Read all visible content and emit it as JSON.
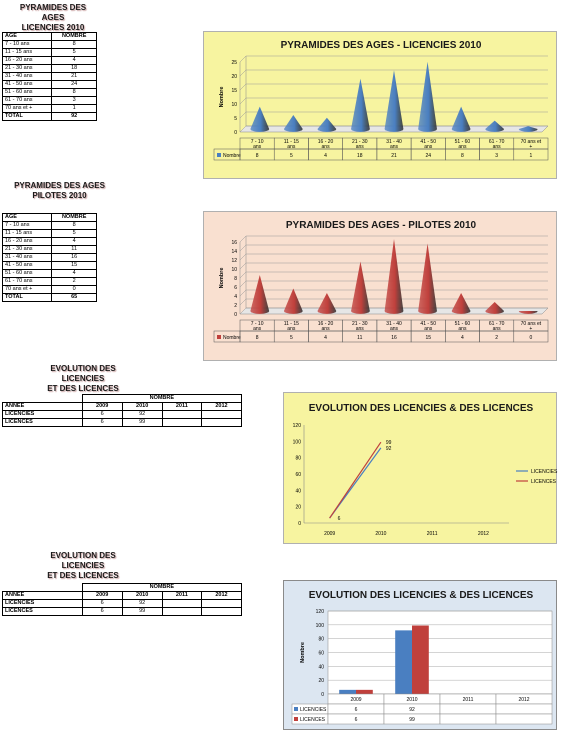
{
  "sections": [
    {
      "title_line1": "PYRAMIDES DES AGES",
      "title_line2": "LICENCIES 2010",
      "table": {
        "headers": [
          "AGE",
          "NOMBRE"
        ],
        "rows": [
          [
            "7 - 10 ans",
            "8"
          ],
          [
            "11 - 15 ans",
            "5"
          ],
          [
            "16 - 20 ans",
            "4"
          ],
          [
            "21 - 30 ans",
            "18"
          ],
          [
            "31 - 40 ans",
            "21"
          ],
          [
            "41 - 50 ans",
            "24"
          ],
          [
            "51 - 60 ans",
            "8"
          ],
          [
            "61 - 70 ans",
            "3"
          ],
          [
            "70 ans et +",
            "1"
          ]
        ],
        "total": [
          "TOTAL",
          "92"
        ]
      }
    },
    {
      "title_line1": "PYRAMIDES DES AGES",
      "title_line2": "PILOTES 2010",
      "table": {
        "headers": [
          "AGE",
          "NOMBRE"
        ],
        "rows": [
          [
            "7 - 10 ans",
            "8"
          ],
          [
            "11 - 15 ans",
            "5"
          ],
          [
            "16 - 20 ans",
            "4"
          ],
          [
            "21 - 30 ans",
            "11"
          ],
          [
            "31 - 40 ans",
            "16"
          ],
          [
            "41 - 50 ans",
            "15"
          ],
          [
            "51 - 60 ans",
            "4"
          ],
          [
            "61 - 70 ans",
            "2"
          ],
          [
            "70 ans et +",
            "0"
          ]
        ],
        "total": [
          "TOTAL",
          "65"
        ]
      }
    },
    {
      "title_line1": "EVOLUTION DES LICENCIES",
      "title_line2": "ET DES LICENCES",
      "table": {
        "group_header": "NOMBRE",
        "headers": [
          "ANNEE",
          "2009",
          "2010",
          "2011",
          "2012"
        ],
        "rows": [
          [
            "LICENCIES",
            "6",
            "92",
            "",
            ""
          ],
          [
            "LICENCES",
            "6",
            "99",
            "",
            ""
          ]
        ]
      }
    },
    {
      "title_line1": "EVOLUTION DES LICENCIES",
      "title_line2": "ET DES LICENCES",
      "table": {
        "group_header": "NOMBRE",
        "headers": [
          "ANNEE",
          "2009",
          "2010",
          "2011",
          "2012"
        ],
        "rows": [
          [
            "LICENCIES",
            "6",
            "92",
            "",
            ""
          ],
          [
            "LICENCES",
            "6",
            "99",
            "",
            ""
          ]
        ]
      }
    }
  ],
  "colors": {
    "blue": "#4a7fc1",
    "red": "#c0403c",
    "yellow_bg": "#f7f4a0",
    "pink_bg": "#f9e0d0",
    "lightblue_bg": "#dce6f1"
  },
  "chart_data": [
    {
      "type": "bar",
      "style": "cone-3d",
      "title": "PYRAMIDES DES AGES - LICENCIES 2010",
      "ylabel": "Nombre",
      "ylim": [
        0,
        25
      ],
      "yticks": [
        0,
        5,
        10,
        15,
        20,
        25
      ],
      "categories": [
        "7 - 10 ans",
        "11 - 15 ans",
        "16 - 20 ans",
        "21 - 30 ans",
        "31 - 40 ans",
        "41 - 50 ans",
        "51 - 60 ans",
        "61 - 70 ans",
        "70 ans et +"
      ],
      "series": [
        {
          "name": "Nombre",
          "values": [
            8,
            5,
            4,
            18,
            21,
            24,
            8,
            3,
            1
          ]
        }
      ],
      "data_table": true,
      "grid": true
    },
    {
      "type": "bar",
      "style": "cone-3d",
      "title": "PYRAMIDES DES AGES - PILOTES 2010",
      "ylabel": "Nombre",
      "ylim": [
        0,
        16
      ],
      "yticks": [
        0,
        2,
        4,
        6,
        8,
        10,
        12,
        14,
        16
      ],
      "categories": [
        "7 - 10 ans",
        "11 - 15 ans",
        "16 - 20 ans",
        "21 - 30 ans",
        "31 - 40 ans",
        "41 - 50 ans",
        "51 - 60 ans",
        "61 - 70 ans",
        "70 ans et +"
      ],
      "series": [
        {
          "name": "Nombre",
          "values": [
            8,
            5,
            4,
            11,
            16,
            15,
            4,
            2,
            0
          ]
        }
      ],
      "data_table": true,
      "grid": true
    },
    {
      "type": "line",
      "title": "EVOLUTION DES LICENCIES & DES LICENCES",
      "ylim": [
        0,
        120
      ],
      "yticks": [
        0,
        20,
        40,
        60,
        80,
        100,
        120
      ],
      "categories": [
        "2009",
        "2010",
        "2011",
        "2012"
      ],
      "series": [
        {
          "name": "LICENCIES",
          "values": [
            6,
            92,
            null,
            null
          ]
        },
        {
          "name": "LICENCES",
          "values": [
            6,
            99,
            null,
            null
          ]
        }
      ],
      "legend": "right",
      "grid": false
    },
    {
      "type": "bar",
      "title": "EVOLUTION DES LICENCIES & DES LICENCES",
      "ylabel": "Nombre",
      "ylim": [
        0,
        120
      ],
      "yticks": [
        0,
        20,
        40,
        60,
        80,
        100,
        120
      ],
      "categories": [
        "2009",
        "2010",
        "2011",
        "2012"
      ],
      "series": [
        {
          "name": "LICENCIES",
          "values": [
            6,
            92,
            null,
            null
          ]
        },
        {
          "name": "LICENCES",
          "values": [
            6,
            99,
            null,
            null
          ]
        }
      ],
      "data_table": true,
      "grid": true
    }
  ]
}
